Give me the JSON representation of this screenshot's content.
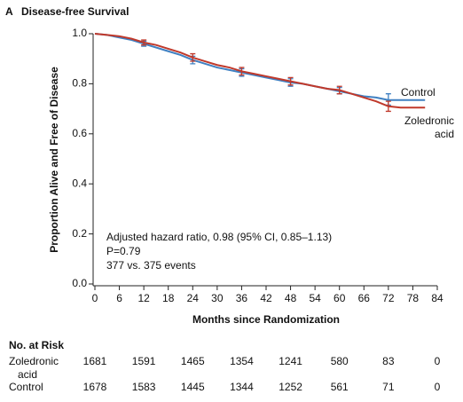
{
  "chart_data": {
    "type": "line",
    "panel": "A",
    "title": "Disease-free Survival",
    "x_label": "Months since Randomization",
    "y_label": "Proportion Alive and Free of Disease",
    "xlim": [
      0,
      84
    ],
    "ylim": [
      0,
      1
    ],
    "xticks": [
      0,
      6,
      12,
      18,
      24,
      30,
      36,
      42,
      48,
      54,
      60,
      66,
      72,
      78,
      84
    ],
    "yticks": [
      {
        "value": 0,
        "label": "0.0"
      },
      {
        "value": 0.2,
        "label": "0.2"
      },
      {
        "value": 0.4,
        "label": "0.4"
      },
      {
        "value": 0.6,
        "label": "0.6"
      },
      {
        "value": 0.8,
        "label": "0.8"
      },
      {
        "value": 1,
        "label": "1.0"
      }
    ],
    "annotations": [
      "Adjusted hazard ratio, 0.98 (95% CI, 0.85–1.13)",
      "P=0.79",
      "377 vs. 375 events"
    ],
    "series": [
      {
        "name": "Control",
        "color": "#3f80c2",
        "x": [
          0,
          3,
          6,
          9,
          12,
          15,
          18,
          21,
          24,
          27,
          30,
          33,
          36,
          39,
          42,
          45,
          48,
          51,
          54,
          57,
          60,
          63,
          66,
          69,
          72,
          75,
          81
        ],
        "values": [
          1.0,
          0.995,
          0.985,
          0.975,
          0.96,
          0.945,
          0.93,
          0.915,
          0.895,
          0.88,
          0.865,
          0.855,
          0.845,
          0.835,
          0.825,
          0.815,
          0.805,
          0.8,
          0.79,
          0.78,
          0.77,
          0.76,
          0.75,
          0.745,
          0.735,
          0.735,
          0.735
        ],
        "ci_x": [
          12,
          24,
          36,
          48,
          60,
          72
        ],
        "ci_lower": [
          0.95,
          0.88,
          0.83,
          0.79,
          0.76,
          0.715
        ],
        "ci_upper": [
          0.97,
          0.91,
          0.86,
          0.82,
          0.785,
          0.76
        ]
      },
      {
        "name": "Zoledronic acid",
        "color": "#c0392b",
        "x": [
          0,
          3,
          6,
          9,
          12,
          15,
          18,
          21,
          24,
          27,
          30,
          33,
          36,
          39,
          42,
          45,
          48,
          51,
          54,
          57,
          60,
          63,
          66,
          69,
          72,
          75,
          81
        ],
        "values": [
          1.0,
          0.995,
          0.99,
          0.98,
          0.965,
          0.955,
          0.94,
          0.925,
          0.905,
          0.89,
          0.875,
          0.865,
          0.85,
          0.84,
          0.83,
          0.82,
          0.81,
          0.8,
          0.79,
          0.78,
          0.775,
          0.76,
          0.745,
          0.73,
          0.71,
          0.705,
          0.705
        ],
        "ci_x": [
          12,
          24,
          36,
          48,
          60,
          72
        ],
        "ci_lower": [
          0.955,
          0.89,
          0.835,
          0.795,
          0.76,
          0.69
        ],
        "ci_upper": [
          0.975,
          0.92,
          0.865,
          0.825,
          0.79,
          0.73
        ]
      }
    ],
    "risk_table": {
      "title": "No. at Risk",
      "rows": [
        {
          "label": "Zoledronic acid",
          "values": [
            1681,
            1591,
            1465,
            1354,
            1241,
            580,
            83,
            0
          ]
        },
        {
          "label": "Control",
          "values": [
            1678,
            1583,
            1445,
            1344,
            1252,
            561,
            71,
            0
          ]
        }
      ]
    }
  }
}
